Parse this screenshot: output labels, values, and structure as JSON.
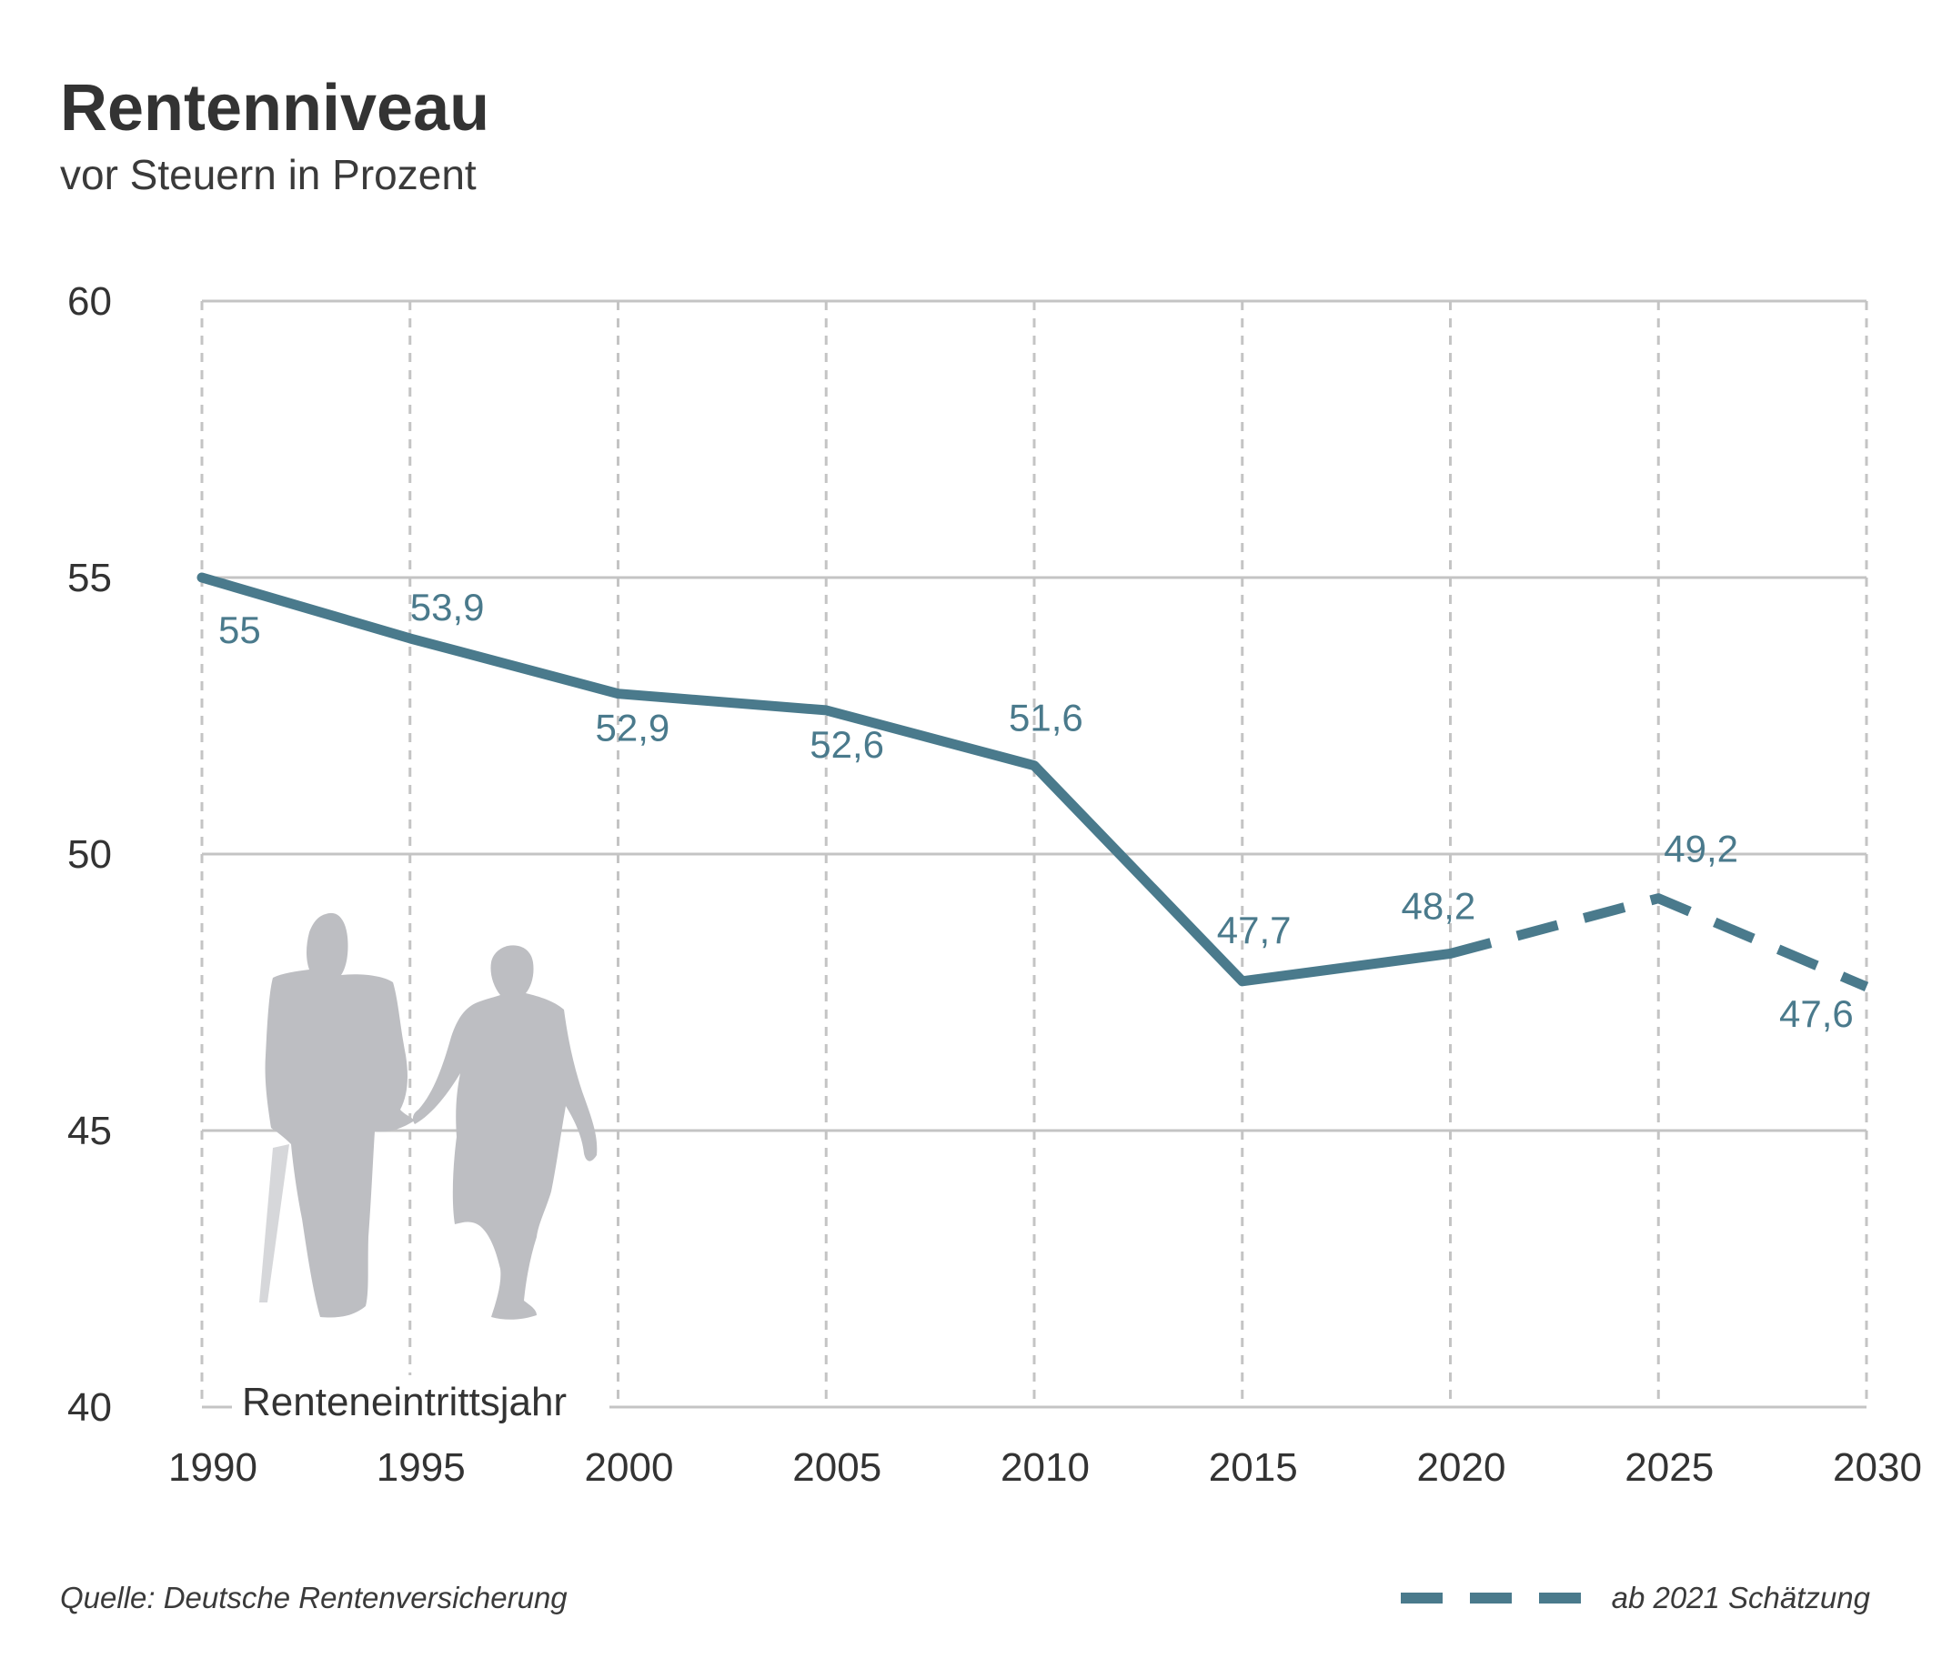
{
  "chart_data": {
    "type": "line",
    "title": "Rentenniveau",
    "subtitle": "vor Steuern in Prozent",
    "xlabel": "Renteneintrittsjahr",
    "ylabel": "",
    "x_ticks": [
      1990,
      1995,
      2000,
      2005,
      2010,
      2015,
      2020,
      2025,
      2030
    ],
    "y_ticks": [
      40,
      45,
      50,
      55,
      60
    ],
    "xlim": [
      1990,
      2030
    ],
    "ylim": [
      40,
      60
    ],
    "grid": true,
    "series": [
      {
        "values": [
          {
            "x": 1990,
            "y": 55,
            "label": "55"
          },
          {
            "x": 1995,
            "y": 53.9,
            "label": "53,9"
          },
          {
            "x": 2000,
            "y": 52.9,
            "label": "52,9"
          },
          {
            "x": 2005,
            "y": 52.6,
            "label": "52,6"
          },
          {
            "x": 2010,
            "y": 51.6,
            "label": "51,6"
          },
          {
            "x": 2015,
            "y": 47.7,
            "label": "47,7"
          },
          {
            "x": 2020,
            "y": 48.2,
            "label": "48,2"
          },
          {
            "x": 2025,
            "y": 49.2,
            "label": "49,2"
          },
          {
            "x": 2030,
            "y": 47.6,
            "label": "47,6"
          }
        ],
        "estimate_from": 2021
      }
    ],
    "line_color": "#4a7a8c",
    "legend": {
      "label": "ab 2021 Schätzung",
      "placement": "bottom-right"
    },
    "decoration": "elderly-couple-silhouette"
  },
  "footer": {
    "source": "Quelle: Deutsche Rentenversicherung"
  }
}
